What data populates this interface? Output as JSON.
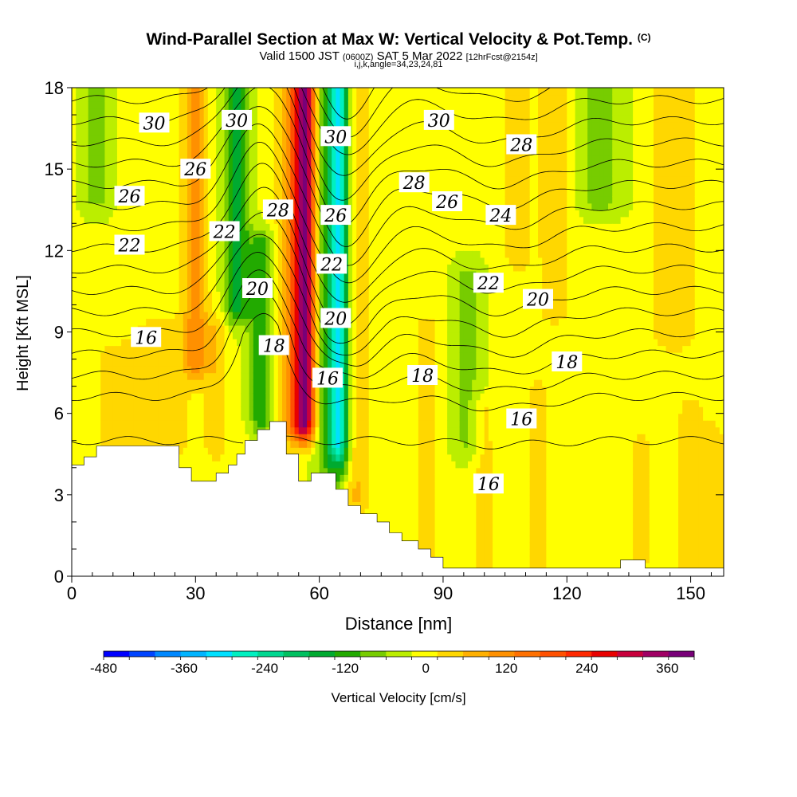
{
  "header": {
    "title": "Wind-Parallel Section at Max W: Vertical Velocity & Pot.Temp.",
    "title_mark": "(C)",
    "valid_prefix": "Valid 1500 JST",
    "valid_utc": "(0600Z)",
    "valid_date": "SAT 5 Mar 2022",
    "forecast": "[12hrFcst@2154z]",
    "grid_info": "i,j,k,angle=34,23,24,81"
  },
  "chart_data": {
    "type": "heatmap",
    "xlabel": "Distance [nm]",
    "ylabel": "Height [Kft MSL]",
    "xlim": [
      0,
      158
    ],
    "ylim": [
      0,
      18
    ],
    "x_ticks": [
      "0",
      "30",
      "60",
      "90",
      "120",
      "150"
    ],
    "x_tick_values": [
      0,
      30,
      60,
      90,
      120,
      150
    ],
    "y_ticks": [
      "0",
      "3",
      "6",
      "9",
      "12",
      "15",
      "18"
    ],
    "y_tick_values": [
      0,
      3,
      6,
      9,
      12,
      15,
      18
    ],
    "grid": false,
    "terrain_color": "#ffffff",
    "terrain": [
      [
        0,
        4.1
      ],
      [
        3,
        4.1
      ],
      [
        3,
        4.4
      ],
      [
        6,
        4.4
      ],
      [
        6,
        4.8
      ],
      [
        26,
        4.8
      ],
      [
        26,
        4.0
      ],
      [
        29,
        4.0
      ],
      [
        29,
        3.5
      ],
      [
        35,
        3.5
      ],
      [
        35,
        3.8
      ],
      [
        38,
        3.8
      ],
      [
        38,
        4.1
      ],
      [
        40,
        4.1
      ],
      [
        40,
        4.5
      ],
      [
        42,
        4.5
      ],
      [
        42,
        5.0
      ],
      [
        45,
        5.0
      ],
      [
        45,
        5.4
      ],
      [
        48,
        5.4
      ],
      [
        48,
        5.7
      ],
      [
        52,
        5.7
      ],
      [
        52,
        4.5
      ],
      [
        55,
        4.5
      ],
      [
        55,
        3.5
      ],
      [
        58,
        3.5
      ],
      [
        58,
        3.8
      ],
      [
        64,
        3.8
      ],
      [
        64,
        3.2
      ],
      [
        67,
        3.2
      ],
      [
        67,
        2.6
      ],
      [
        70,
        2.6
      ],
      [
        70,
        2.3
      ],
      [
        74,
        2.3
      ],
      [
        74,
        2.0
      ],
      [
        77,
        2.0
      ],
      [
        77,
        1.6
      ],
      [
        80,
        1.6
      ],
      [
        80,
        1.3
      ],
      [
        84,
        1.3
      ],
      [
        84,
        1.0
      ],
      [
        87,
        1.0
      ],
      [
        87,
        0.7
      ],
      [
        90,
        0.7
      ],
      [
        90,
        0.3
      ],
      [
        133,
        0.3
      ],
      [
        133,
        0.6
      ],
      [
        139,
        0.6
      ],
      [
        139,
        0.3
      ],
      [
        158,
        0.3
      ]
    ],
    "colorbar": {
      "label": "Vertical Velocity [cm/s]",
      "min": -480,
      "max": 400,
      "step": 40,
      "ticks": [
        "-480",
        "-360",
        "-240",
        "-120",
        "0",
        "120",
        "240",
        "360"
      ],
      "tick_values": [
        -480,
        -360,
        -240,
        -120,
        0,
        120,
        240,
        360
      ],
      "colors": [
        "#0000ff",
        "#0044ff",
        "#0088ff",
        "#00b4ff",
        "#00e0ff",
        "#00f0c0",
        "#00d890",
        "#00c060",
        "#00aa30",
        "#22aa00",
        "#77cc00",
        "#bbee00",
        "#ffff00",
        "#ffd700",
        "#ffb000",
        "#ff9000",
        "#ff7000",
        "#ff5000",
        "#ff2800",
        "#e80000",
        "#c8003c",
        "#a00064",
        "#780078"
      ]
    },
    "vertical_velocity": {
      "units": "cm/s",
      "background": 10,
      "features": [
        {
          "x": 56.5,
          "width": 2.2,
          "y_bottom": 5.8,
          "y_top": 18,
          "value": 280
        },
        {
          "x": 54.5,
          "width": 4,
          "y_bottom": 5.6,
          "y_top": 18,
          "value": 170
        },
        {
          "x": 64.5,
          "width": 2.6,
          "y_bottom": 5,
          "y_top": 18,
          "value": -200
        },
        {
          "x": 64,
          "width": 4.5,
          "y_bottom": 4,
          "y_top": 18,
          "value": -110
        },
        {
          "x": 69,
          "width": 2.8,
          "y_bottom": 3,
          "y_top": 18,
          "value": 90
        },
        {
          "x": 40,
          "width": 3,
          "y_bottom": 10,
          "y_top": 18,
          "value": -150
        },
        {
          "x": 46,
          "width": 3,
          "y_bottom": 6,
          "y_top": 12,
          "value": -120
        },
        {
          "x": 30,
          "width": 3,
          "y_bottom": 8,
          "y_top": 18,
          "value": 120
        },
        {
          "x": 35,
          "width": 2.5,
          "y_bottom": 5,
          "y_top": 9,
          "value": 60
        },
        {
          "x": 6,
          "width": 4,
          "y_bottom": 14,
          "y_top": 18,
          "value": -60
        },
        {
          "x": 22,
          "width": 8,
          "y_bottom": 4.8,
          "y_top": 9,
          "value": 50
        },
        {
          "x": 10,
          "width": 6,
          "y_bottom": 5,
          "y_top": 8,
          "value": 40
        },
        {
          "x": 86,
          "width": 3,
          "y_bottom": 0.7,
          "y_top": 9,
          "value": 55
        },
        {
          "x": 96,
          "width": 4,
          "y_bottom": 5,
          "y_top": 11,
          "value": -60
        },
        {
          "x": 100,
          "width": 3,
          "y_bottom": 0.3,
          "y_top": 6,
          "value": 50
        },
        {
          "x": 108,
          "width": 3,
          "y_bottom": 12,
          "y_top": 18,
          "value": 70
        },
        {
          "x": 117,
          "width": 4,
          "y_bottom": 10,
          "y_top": 18,
          "value": 60
        },
        {
          "x": 128,
          "width": 6,
          "y_bottom": 14,
          "y_top": 18,
          "value": -70
        },
        {
          "x": 146,
          "width": 5,
          "y_bottom": 9,
          "y_top": 18,
          "value": 70
        },
        {
          "x": 150,
          "width": 4,
          "y_bottom": 0.3,
          "y_top": 6,
          "value": 45
        },
        {
          "x": 156,
          "width": 3,
          "y_bottom": 0.3,
          "y_top": 5,
          "value": 45
        },
        {
          "x": 113,
          "width": 4,
          "y_bottom": 0.3,
          "y_top": 7,
          "value": 35
        },
        {
          "x": 138,
          "width": 4,
          "y_bottom": 0.5,
          "y_top": 5,
          "value": 35
        }
      ]
    },
    "potential_temperature": {
      "units": "C",
      "contour_interval": 1,
      "levels_from": 15,
      "levels_to": 33,
      "labels": [
        {
          "text": "30",
          "x": 20,
          "y": 16.7
        },
        {
          "text": "30",
          "x": 40,
          "y": 16.8
        },
        {
          "text": "30",
          "x": 64,
          "y": 16.2
        },
        {
          "text": "30",
          "x": 89,
          "y": 16.8
        },
        {
          "text": "28",
          "x": 109,
          "y": 15.9
        },
        {
          "text": "26",
          "x": 30,
          "y": 15.0
        },
        {
          "text": "26",
          "x": 14,
          "y": 14.0
        },
        {
          "text": "28",
          "x": 83,
          "y": 14.5
        },
        {
          "text": "26",
          "x": 91,
          "y": 13.8
        },
        {
          "text": "28",
          "x": 50,
          "y": 13.5
        },
        {
          "text": "26",
          "x": 64,
          "y": 13.3
        },
        {
          "text": "24",
          "x": 104,
          "y": 13.3
        },
        {
          "text": "22",
          "x": 37,
          "y": 12.7
        },
        {
          "text": "22",
          "x": 14,
          "y": 12.2
        },
        {
          "text": "22",
          "x": 63,
          "y": 11.5
        },
        {
          "text": "22",
          "x": 101,
          "y": 10.8
        },
        {
          "text": "20",
          "x": 113,
          "y": 10.2
        },
        {
          "text": "20",
          "x": 45,
          "y": 10.6
        },
        {
          "text": "20",
          "x": 64,
          "y": 9.5
        },
        {
          "text": "16",
          "x": 18,
          "y": 8.8
        },
        {
          "text": "18",
          "x": 49,
          "y": 8.5
        },
        {
          "text": "18",
          "x": 120,
          "y": 7.9
        },
        {
          "text": "18",
          "x": 85,
          "y": 7.4
        },
        {
          "text": "16",
          "x": 62,
          "y": 7.3
        },
        {
          "text": "16",
          "x": 109,
          "y": 5.8
        },
        {
          "text": "16",
          "x": 101,
          "y": 3.4
        }
      ]
    }
  }
}
